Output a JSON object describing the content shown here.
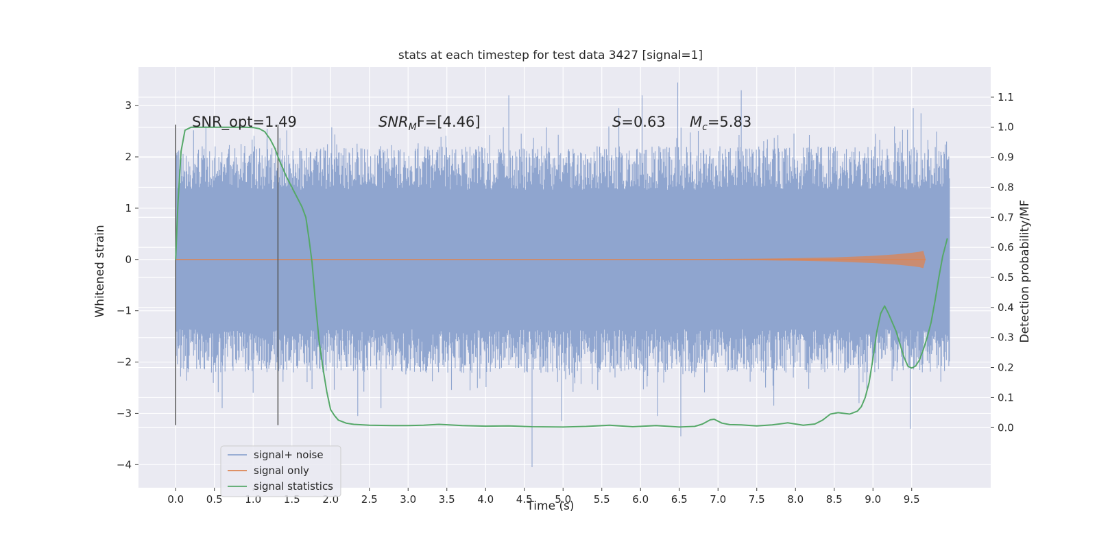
{
  "chart_data": {
    "type": "line",
    "title": "stats at each timestep for test data 3427 [signal=1]",
    "xlabel": "Time (s)",
    "ylabel": "Whitened strain",
    "ylabel_right": "Detection probability/MF",
    "xlim": [
      -0.48,
      10.52
    ],
    "ylim": [
      -4.45,
      3.75
    ],
    "ylim_right": [
      -0.2,
      1.2
    ],
    "x_ticks": [
      0.0,
      0.5,
      1.0,
      1.5,
      2.0,
      2.5,
      3.0,
      3.5,
      4.0,
      4.5,
      5.0,
      5.5,
      6.0,
      6.5,
      7.0,
      7.5,
      8.0,
      8.5,
      9.0,
      9.5
    ],
    "x_tick_labels": [
      "0.0",
      "0.5",
      "1.0",
      "1.5",
      "2.0",
      "2.5",
      "3.0",
      "3.5",
      "4.0",
      "4.5",
      "5.0",
      "5.5",
      "6.0",
      "6.5",
      "7.0",
      "7.5",
      "8.0",
      "8.5",
      "9.0",
      "9.5"
    ],
    "y_ticks": [
      -4,
      -3,
      -2,
      -1,
      0,
      1,
      2,
      3
    ],
    "y_tick_labels": [
      "−4",
      "−3",
      "−2",
      "−1",
      "0",
      "1",
      "2",
      "3"
    ],
    "y_ticks_right": [
      0.0,
      0.1,
      0.2,
      0.3,
      0.4,
      0.5,
      0.6,
      0.7,
      0.8,
      0.9,
      1.0,
      1.1
    ],
    "y_tick_labels_right": [
      "0.0",
      "0.1",
      "0.2",
      "0.3",
      "0.4",
      "0.5",
      "0.6",
      "0.7",
      "0.8",
      "0.9",
      "1.0",
      "1.1"
    ],
    "grid": true,
    "legend_position": "lower-left",
    "vlines": [
      0.0,
      1.32
    ],
    "annotations": {
      "snr_opt": "SNR_opt=1.49",
      "snr_mf_main": "SNR",
      "snr_mf_sub": "M",
      "snr_mf_rest": "F=[4.46]",
      "s_symbol": "S",
      "s_rest": "=0.63",
      "mc_main": "M",
      "mc_sub": "c",
      "mc_rest": "=5.83"
    },
    "series": [
      {
        "name": "signal+ noise",
        "color": "#8fa5cf",
        "axis": "left",
        "kind": "dense-noise",
        "x_range": [
          0.0,
          9.99
        ],
        "envelope_typical": 1.7,
        "max": 3.45,
        "min": -4.05,
        "spikes": [
          [
            0.39,
            2.6
          ],
          [
            0.6,
            -2.9
          ],
          [
            1.0,
            -2.6
          ],
          [
            1.18,
            2.55
          ],
          [
            1.9,
            -2.2
          ],
          [
            2.35,
            -3.05
          ],
          [
            2.65,
            -2.9
          ],
          [
            3.8,
            -2.55
          ],
          [
            4.3,
            3.2
          ],
          [
            4.6,
            -4.05
          ],
          [
            4.98,
            -3.15
          ],
          [
            5.72,
            2.95
          ],
          [
            6.02,
            3.2
          ],
          [
            6.22,
            -3.05
          ],
          [
            6.48,
            3.45
          ],
          [
            6.52,
            -3.45
          ],
          [
            7.3,
            3.3
          ],
          [
            7.72,
            -2.85
          ],
          [
            8.82,
            -2.8
          ],
          [
            9.48,
            -3.3
          ],
          [
            9.52,
            2.95
          ],
          [
            9.62,
            2.85
          ],
          [
            9.95,
            2.3
          ]
        ]
      },
      {
        "name": "signal only",
        "color": "#dd8452",
        "axis": "left",
        "kind": "chirp",
        "x": [
          0.0,
          6.0,
          7.0,
          7.5,
          8.0,
          8.5,
          9.0,
          9.3,
          9.5,
          9.6,
          9.65,
          9.68
        ],
        "amplitude": [
          0.005,
          0.006,
          0.01,
          0.015,
          0.025,
          0.04,
          0.07,
          0.1,
          0.13,
          0.15,
          0.17,
          0.0
        ]
      },
      {
        "name": "signal statistics",
        "color": "#55a868",
        "axis": "right",
        "x": [
          0.0,
          0.03,
          0.07,
          0.12,
          0.2,
          0.3,
          0.5,
          0.7,
          0.9,
          1.0,
          1.08,
          1.15,
          1.22,
          1.28,
          1.33,
          1.38,
          1.43,
          1.48,
          1.53,
          1.58,
          1.63,
          1.68,
          1.72,
          1.76,
          1.8,
          1.85,
          1.9,
          1.95,
          2.0,
          2.05,
          2.1,
          2.2,
          2.3,
          2.5,
          2.8,
          3.0,
          3.2,
          3.4,
          3.7,
          4.0,
          4.3,
          4.6,
          5.0,
          5.3,
          5.6,
          5.9,
          6.2,
          6.5,
          6.7,
          6.8,
          6.9,
          6.95,
          7.05,
          7.15,
          7.3,
          7.5,
          7.7,
          7.9,
          8.1,
          8.25,
          8.35,
          8.45,
          8.55,
          8.7,
          8.8,
          8.85,
          8.9,
          8.95,
          9.0,
          9.05,
          9.1,
          9.15,
          9.2,
          9.3,
          9.4,
          9.45,
          9.5,
          9.55,
          9.6,
          9.65,
          9.7,
          9.75,
          9.8,
          9.85,
          9.9,
          9.96
        ],
        "values": [
          0.56,
          0.75,
          0.92,
          0.99,
          1.0,
          1.0,
          1.0,
          1.0,
          1.0,
          0.999,
          0.995,
          0.985,
          0.96,
          0.93,
          0.895,
          0.865,
          0.835,
          0.81,
          0.785,
          0.76,
          0.735,
          0.7,
          0.63,
          0.55,
          0.43,
          0.29,
          0.2,
          0.12,
          0.06,
          0.04,
          0.025,
          0.015,
          0.011,
          0.008,
          0.007,
          0.007,
          0.008,
          0.011,
          0.007,
          0.005,
          0.006,
          0.003,
          0.002,
          0.004,
          0.008,
          0.003,
          0.007,
          0.002,
          0.004,
          0.012,
          0.026,
          0.028,
          0.015,
          0.01,
          0.009,
          0.006,
          0.009,
          0.016,
          0.008,
          0.012,
          0.025,
          0.045,
          0.05,
          0.045,
          0.055,
          0.07,
          0.1,
          0.15,
          0.23,
          0.32,
          0.38,
          0.405,
          0.38,
          0.32,
          0.235,
          0.205,
          0.198,
          0.205,
          0.225,
          0.26,
          0.3,
          0.35,
          0.42,
          0.5,
          0.57,
          0.63
        ]
      }
    ]
  },
  "legend": {
    "items": [
      {
        "label": "signal+ noise",
        "color": "#8fa5cf"
      },
      {
        "label": "signal only",
        "color": "#dd8452"
      },
      {
        "label": "signal statistics",
        "color": "#55a868"
      }
    ]
  },
  "colors": {
    "figure_background": "#ffffff",
    "axes_background": "#eaeaf2",
    "grid": "#ffffff",
    "vline": "#555555"
  }
}
